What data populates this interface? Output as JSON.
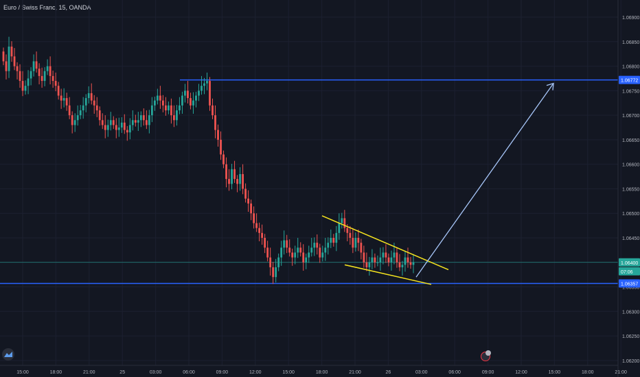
{
  "header": {
    "symbol_title": "Euro / Swiss Franc, 15, OANDA"
  },
  "colors": {
    "background": "#131722",
    "up": "#26a69a",
    "down": "#ef5350",
    "level_line": "#2962ff",
    "current_line": "#26a69a",
    "wedge": "#f7e51e",
    "arrow": "#a8c7fa",
    "axis_text": "#b2b5be"
  },
  "chart_data": {
    "type": "candlestick",
    "title": "Euro / Swiss Franc, 15, OANDA",
    "y_ticks": [
      "1.06900",
      "1.06850",
      "1.06800",
      "1.06750",
      "1.06700",
      "1.06650",
      "1.06600",
      "1.06550",
      "1.06500",
      "1.06450",
      "1.06400",
      "1.06350",
      "1.06300",
      "1.06250",
      "1.06200"
    ],
    "y_range": [
      1.0619,
      1.06935
    ],
    "x_ticks": [
      "15:00",
      "18:00",
      "21:00",
      "25",
      "03:00",
      "06:00",
      "09:00",
      "12:00",
      "15:00",
      "18:00",
      "21:00",
      "26",
      "03:00",
      "06:00",
      "09:00",
      "12:00",
      "15:00",
      "18:00",
      "21:00"
    ],
    "price_labels": [
      {
        "value": "1.06772",
        "kind": "resistance"
      },
      {
        "value": "1.06400",
        "kind": "current"
      },
      {
        "value": "07:06",
        "kind": "countdown"
      },
      {
        "value": "1.06357",
        "kind": "support"
      }
    ],
    "levels": [
      {
        "name": "resistance",
        "price": 1.06772
      },
      {
        "name": "support",
        "price": 1.06357
      }
    ],
    "current_price": 1.064,
    "closes": [
      1.0681,
      1.0679,
      1.0684,
      1.0682,
      1.068,
      1.0679,
      1.0677,
      1.0675,
      1.0676,
      1.06775,
      1.0679,
      1.0681,
      1.06795,
      1.0678,
      1.0677,
      1.0679,
      1.068,
      1.0678,
      1.0677,
      1.0676,
      1.0674,
      1.0673,
      1.06735,
      1.0672,
      1.067,
      1.0668,
      1.0669,
      1.067,
      1.0671,
      1.0672,
      1.06735,
      1.06745,
      1.0673,
      1.0672,
      1.0671,
      1.0669,
      1.0668,
      1.0667,
      1.0668,
      1.0669,
      1.0668,
      1.0667,
      1.06675,
      1.06685,
      1.0667,
      1.06665,
      1.0668,
      1.0669,
      1.06685,
      1.0669,
      1.067,
      1.0669,
      1.0668,
      1.067,
      1.0672,
      1.0673,
      1.0674,
      1.0673,
      1.0672,
      1.0671,
      1.0672,
      1.067,
      1.0669,
      1.0671,
      1.0672,
      1.0674,
      1.0675,
      1.06735,
      1.0672,
      1.0673,
      1.0674,
      1.0675,
      1.0676,
      1.06765,
      1.0677,
      1.0672,
      1.067,
      1.0667,
      1.0665,
      1.0662,
      1.066,
      1.0657,
      1.0656,
      1.0659,
      1.0657,
      1.0656,
      1.0658,
      1.0655,
      1.0653,
      1.0652,
      1.065,
      1.0648,
      1.0647,
      1.0646,
      1.0645,
      1.0643,
      1.0641,
      1.0639,
      1.0637,
      1.0639,
      1.0641,
      1.0643,
      1.06445,
      1.0643,
      1.0642,
      1.0641,
      1.0642,
      1.0643,
      1.0642,
      1.064,
      1.0641,
      1.0642,
      1.0643,
      1.0644,
      1.0643,
      1.0641,
      1.0642,
      1.0643,
      1.0644,
      1.0645,
      1.0644,
      1.0646,
      1.0648,
      1.0649,
      1.0647,
      1.0646,
      1.0645,
      1.0643,
      1.0645,
      1.0644,
      1.0642,
      1.064,
      1.0639,
      1.064,
      1.0641,
      1.064,
      1.064,
      1.0641,
      1.0642,
      1.0641,
      1.064,
      1.0641,
      1.0642,
      1.064,
      1.0639,
      1.06395,
      1.0641,
      1.064,
      1.06395,
      1.064
    ],
    "annotations": [
      {
        "type": "falling-wedge",
        "upper": [
          [
            1.06495,
            "start"
          ],
          [
            1.06385,
            "end"
          ]
        ],
        "lower": [
          [
            1.06395,
            "start"
          ],
          [
            1.06355,
            "end"
          ]
        ]
      },
      {
        "type": "arrow",
        "from": 1.0637,
        "to": 1.06765
      }
    ]
  }
}
